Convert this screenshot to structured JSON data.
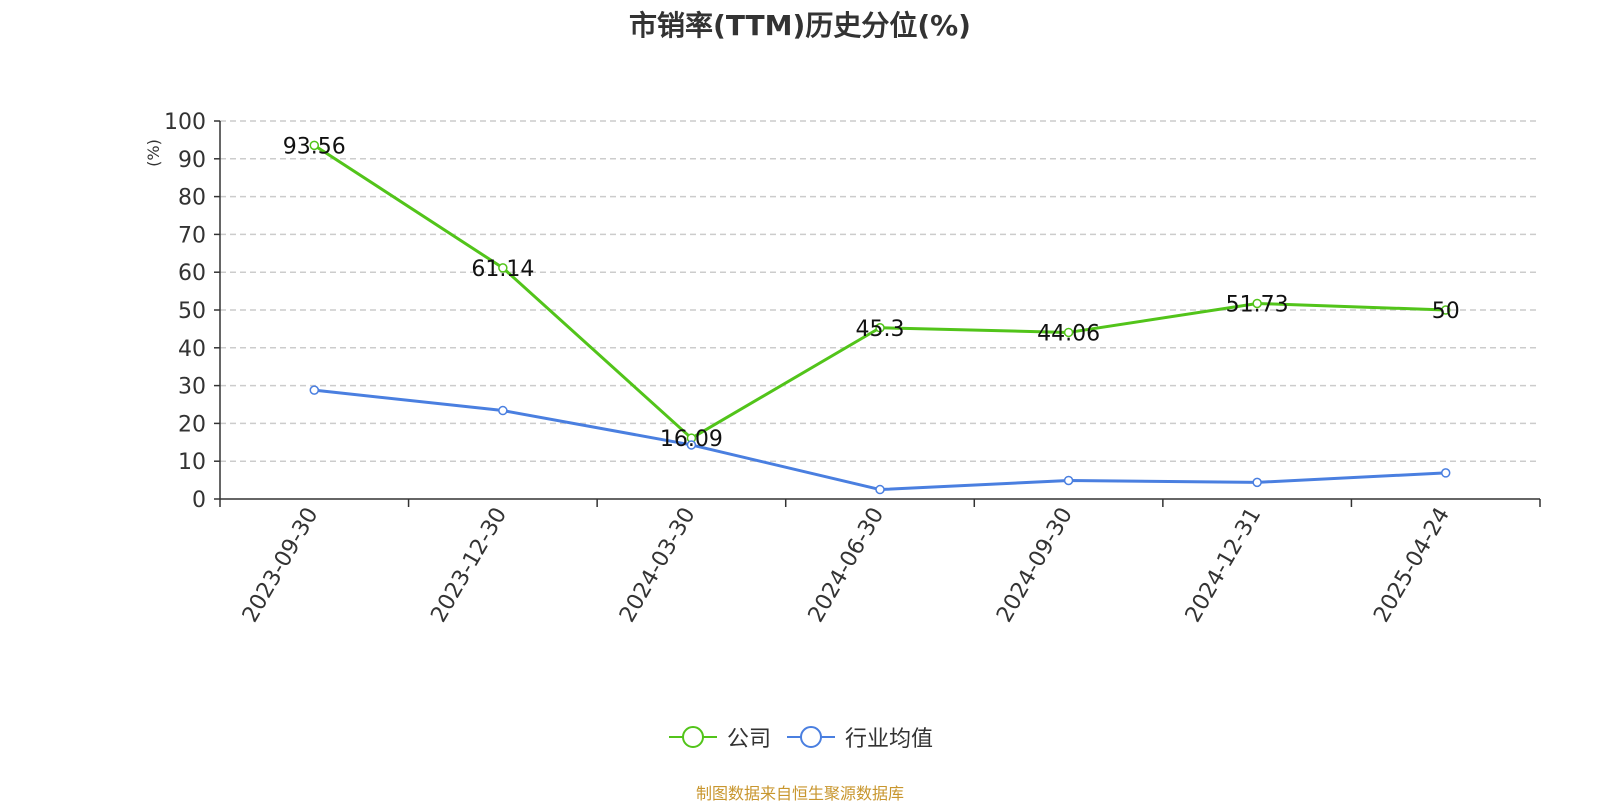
{
  "title": "市销率(TTM)历史分位(%)",
  "source": "制图数据来自恒生聚源数据库",
  "chart_data": {
    "type": "line",
    "title": "市销率(TTM)历史分位(%)",
    "ylabel": "(%)",
    "xlabel": "",
    "ylim": [
      0,
      100
    ],
    "yticks": [
      0,
      10,
      20,
      30,
      40,
      50,
      60,
      70,
      80,
      90,
      100
    ],
    "grid": true,
    "legend_position": "bottom-center",
    "categories": [
      "2023-09-30",
      "2023-12-30",
      "2024-03-30",
      "2024-06-30",
      "2024-09-30",
      "2024-12-31",
      "2025-04-24"
    ],
    "series": [
      {
        "name": "公司",
        "color": "#52c41a",
        "values": [
          93.56,
          61.14,
          16.09,
          45.3,
          44.06,
          51.73,
          50
        ],
        "labels": [
          "93.56",
          "61.14",
          "16.09",
          "45.3",
          "44.06",
          "51.73",
          "50"
        ]
      },
      {
        "name": "行业均值",
        "color": "#4a7fe0",
        "values": [
          28.8,
          23.4,
          14.3,
          2.5,
          4.9,
          4.4,
          6.9
        ]
      }
    ]
  }
}
